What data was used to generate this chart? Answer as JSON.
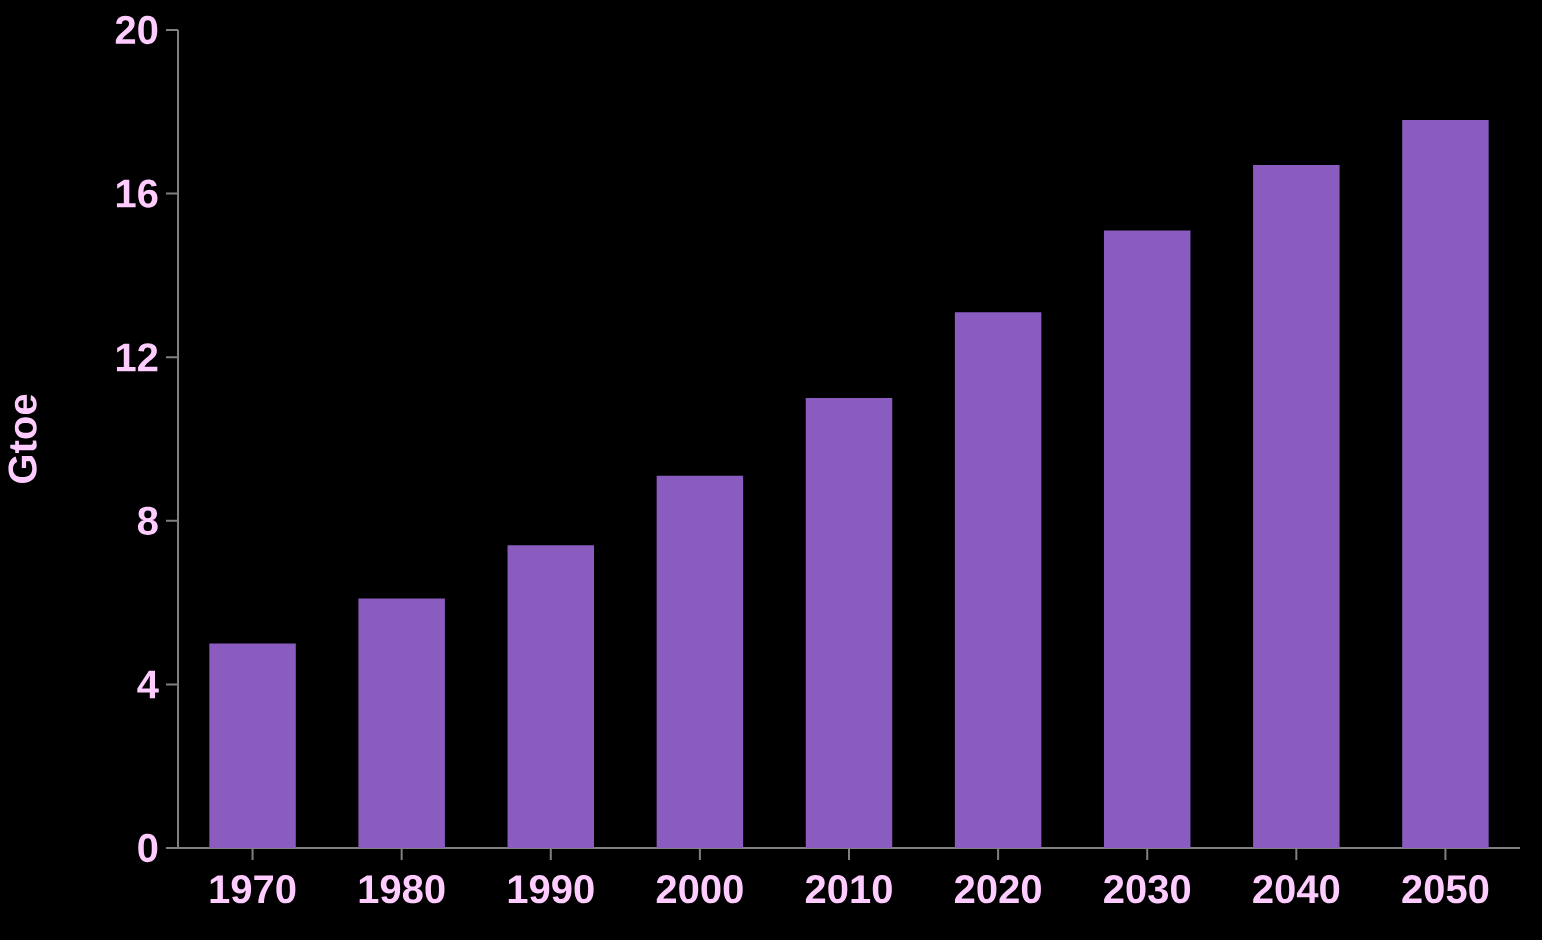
{
  "chart_data": {
    "type": "bar",
    "ylabel": "Gtoe",
    "categories": [
      "1970",
      "1980",
      "1990",
      "2000",
      "2010",
      "2020",
      "2030",
      "2040",
      "2050"
    ],
    "values": [
      5.0,
      6.1,
      7.4,
      9.1,
      11.0,
      13.1,
      15.1,
      16.7,
      17.8
    ],
    "color": "#8a5cc0",
    "ylim": [
      0,
      20
    ],
    "yticks": [
      0,
      4,
      8,
      12,
      16,
      20
    ]
  }
}
